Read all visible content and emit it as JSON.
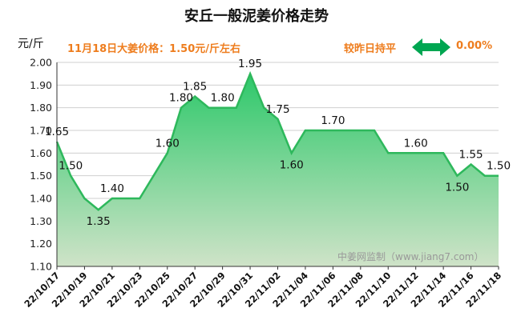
{
  "header": {
    "title": "安丘一般泥姜价格走势",
    "unit": "元/斤",
    "price_note": "11月18日大姜价格：1.50元/斤左右",
    "trend_text": "较昨日持平",
    "trend_pct": "0.00%",
    "arrow_icon": "double-arrow-icon",
    "accent_color": "#ee7d1e",
    "arrow_color": "#00a651"
  },
  "watermark": "中姜网监制（www.jiang7.com）",
  "chart_data": {
    "type": "area",
    "title": "安丘一般泥姜价格走势",
    "ylabel": "元/斤",
    "xlabel": "",
    "ylim": [
      1.1,
      2.0
    ],
    "yticks": [
      "1.10",
      "1.20",
      "1.30",
      "1.40",
      "1.50",
      "1.60",
      "1.70",
      "1.80",
      "1.90",
      "2.00"
    ],
    "x_start": "2022-10-17",
    "x_end": "2022-11-18",
    "xticks": [
      "22/10/17",
      "22/10/19",
      "22/10/21",
      "22/10/23",
      "22/10/25",
      "22/10/27",
      "22/10/29",
      "22/10/31",
      "22/11/02",
      "22/11/04",
      "22/11/06",
      "22/11/08",
      "22/11/10",
      "22/11/12",
      "22/11/14",
      "22/11/16",
      "22/11/18"
    ],
    "grid": true,
    "line_color": "#2eb85c",
    "fill_color_top": "#2dc86a",
    "fill_color_bottom": "#cfe3c8",
    "points": [
      {
        "x": "2022-10-17",
        "y": 1.65
      },
      {
        "x": "2022-10-18",
        "y": 1.5
      },
      {
        "x": "2022-10-19",
        "y": 1.4
      },
      {
        "x": "2022-10-20",
        "y": 1.35
      },
      {
        "x": "2022-10-21",
        "y": 1.4
      },
      {
        "x": "2022-10-23",
        "y": 1.4
      },
      {
        "x": "2022-10-25",
        "y": 1.6
      },
      {
        "x": "2022-10-26",
        "y": 1.8
      },
      {
        "x": "2022-10-27",
        "y": 1.85
      },
      {
        "x": "2022-10-28",
        "y": 1.8
      },
      {
        "x": "2022-10-30",
        "y": 1.8
      },
      {
        "x": "2022-10-31",
        "y": 1.95
      },
      {
        "x": "2022-11-01",
        "y": 1.8
      },
      {
        "x": "2022-11-02",
        "y": 1.75
      },
      {
        "x": "2022-11-03",
        "y": 1.6
      },
      {
        "x": "2022-11-04",
        "y": 1.7
      },
      {
        "x": "2022-11-09",
        "y": 1.7
      },
      {
        "x": "2022-11-10",
        "y": 1.6
      },
      {
        "x": "2022-11-14",
        "y": 1.6
      },
      {
        "x": "2022-11-15",
        "y": 1.5
      },
      {
        "x": "2022-11-16",
        "y": 1.55
      },
      {
        "x": "2022-11-17",
        "y": 1.5
      },
      {
        "x": "2022-11-18",
        "y": 1.5
      }
    ],
    "labels": [
      {
        "x": "2022-10-17",
        "y": 1.65,
        "text": "1.65",
        "pos": "above"
      },
      {
        "x": "2022-10-18",
        "y": 1.5,
        "text": "1.50",
        "pos": "above"
      },
      {
        "x": "2022-10-20",
        "y": 1.35,
        "text": "1.35",
        "pos": "below"
      },
      {
        "x": "2022-10-21",
        "y": 1.4,
        "text": "1.40",
        "pos": "above"
      },
      {
        "x": "2022-10-25",
        "y": 1.6,
        "text": "1.60",
        "pos": "above"
      },
      {
        "x": "2022-10-26",
        "y": 1.8,
        "text": "1.80",
        "pos": "above"
      },
      {
        "x": "2022-10-27",
        "y": 1.85,
        "text": "1.85",
        "pos": "above"
      },
      {
        "x": "2022-10-29",
        "y": 1.8,
        "text": "1.80",
        "pos": "above"
      },
      {
        "x": "2022-10-31",
        "y": 1.95,
        "text": "1.95",
        "pos": "above"
      },
      {
        "x": "2022-11-02",
        "y": 1.75,
        "text": "1.75",
        "pos": "above"
      },
      {
        "x": "2022-11-03",
        "y": 1.6,
        "text": "1.60",
        "pos": "below"
      },
      {
        "x": "2022-11-06",
        "y": 1.7,
        "text": "1.70",
        "pos": "above"
      },
      {
        "x": "2022-11-12",
        "y": 1.6,
        "text": "1.60",
        "pos": "above"
      },
      {
        "x": "2022-11-15",
        "y": 1.5,
        "text": "1.50",
        "pos": "below"
      },
      {
        "x": "2022-11-16",
        "y": 1.55,
        "text": "1.55",
        "pos": "above"
      },
      {
        "x": "2022-11-18",
        "y": 1.5,
        "text": "1.50",
        "pos": "above"
      }
    ]
  }
}
